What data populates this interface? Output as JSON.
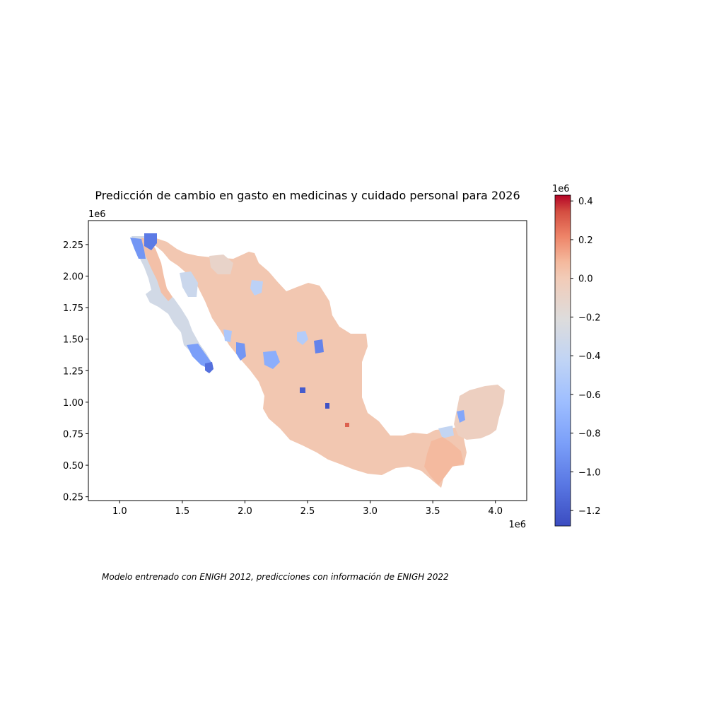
{
  "chart_data": {
    "type": "choropleth",
    "title": "Predicción de cambio en gasto en medicinas y cuidado personal para 2026",
    "caption": "Modelo entrenado con ENIGH 2012, predicciones con información de ENIGH 2022",
    "x_ticks": [
      1.0,
      1.5,
      2.0,
      2.5,
      3.0,
      3.5,
      4.0
    ],
    "x_tick_labels": [
      "1.0",
      "1.5",
      "2.0",
      "2.5",
      "3.0",
      "3.5",
      "4.0"
    ],
    "x_offset_label": "1e6",
    "xlim": [
      0.75,
      4.25
    ],
    "y_ticks": [
      0.25,
      0.5,
      0.75,
      1.0,
      1.25,
      1.5,
      1.75,
      2.0,
      2.25
    ],
    "y_tick_labels": [
      "0.25",
      "0.50",
      "0.75",
      "1.00",
      "1.25",
      "1.50",
      "1.75",
      "2.00",
      "2.25"
    ],
    "y_offset_label": "1e6",
    "ylim": [
      0.22,
      2.44
    ],
    "colorbar": {
      "cmap": "coolwarm",
      "min": -1.28,
      "max": 0.43,
      "offset_label": "1e6",
      "ticks": [
        0.4,
        0.2,
        0.0,
        -0.2,
        -0.4,
        -0.6,
        -0.8,
        -1.0,
        -1.2
      ],
      "tick_labels": [
        "0.4",
        "0.2",
        "0.0",
        "−0.2",
        "−0.4",
        "−0.6",
        "−0.8",
        "−1.0",
        "−1.2"
      ]
    },
    "regions": [
      {
        "name": "mainland",
        "value": 0.02
      },
      {
        "name": "baja-california",
        "value": -0.3
      },
      {
        "name": "baja-north-strip",
        "value": 0.05
      },
      {
        "name": "baja-ne-block",
        "value": -1.05
      },
      {
        "name": "baja-nw-block",
        "value": -0.9
      },
      {
        "name": "baja-sur-tip",
        "value": -0.85
      },
      {
        "name": "baja-sur-cape",
        "value": -1.1
      },
      {
        "name": "sonora-west",
        "value": -0.35
      },
      {
        "name": "chihuahua-north",
        "value": -0.1
      },
      {
        "name": "coahuila-gray",
        "value": -0.45
      },
      {
        "name": "durango-blue",
        "value": -0.75
      },
      {
        "name": "zacatecas-blue",
        "value": -1.0
      },
      {
        "name": "sinaloa-blue",
        "value": -0.9
      },
      {
        "name": "sinaloa-coast",
        "value": -0.55
      },
      {
        "name": "jalisco-blue",
        "value": -1.2
      },
      {
        "name": "guanajuato-blue",
        "value": -1.25
      },
      {
        "name": "cdmx-red",
        "value": 0.3
      },
      {
        "name": "yucatan-peninsula",
        "value": -0.05
      },
      {
        "name": "quintana-roo-gray",
        "value": -0.4
      },
      {
        "name": "campeche-blue",
        "value": -0.8
      },
      {
        "name": "nuevo-leon-gray",
        "value": -0.5
      },
      {
        "name": "chiapas",
        "value": 0.08
      }
    ]
  }
}
